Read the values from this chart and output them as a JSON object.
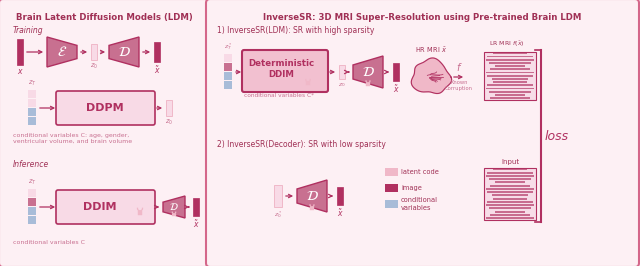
{
  "bg_color": "#ffffff",
  "left_panel_bg": "#fdf0f4",
  "right_panel_bg": "#fdf0f4",
  "panel_border_color": "#d4678a",
  "dark_pink": "#b03060",
  "med_pink": "#c87090",
  "light_pink": "#f0b8c8",
  "lighter_pink": "#f8dae6",
  "pink_box": "#f2c0d0",
  "blue_gray": "#a8bcd8",
  "text_color": "#c05070",
  "dark_text": "#a03055",
  "left_title": "Brain Latent Diffusion Models (LDM)",
  "right_title": "InverseSR: 3D MRI Super-Resolution using Pre-trained Brain LDM",
  "training_label": "Training",
  "inference_label": "Inference",
  "ddpm_label": "DDPM",
  "ddim_label": "DDIM",
  "det_ddim_label": "Deterministic\nDDIM",
  "cond_vars_training": "conditional variables C: age, gender,\nventricular volume, and brain volume",
  "cond_vars_inference": "conditional variables C",
  "section1_label": "1) InverseSR(LDM): SR with high sparsity",
  "section2_label": "2) InverseSR(Decoder): SR with low sparsity",
  "hr_mri_label": "HR MRI $\\bar{x}$",
  "lr_mri_label": "LR MRI $f(\\bar{x})$",
  "loss_label": "loss",
  "input_label": "Input",
  "latent_code_label": "latent code",
  "image_label": "image",
  "cond_vars_label": "conditional\nvariables",
  "known_corr_label": "Known\nCorruption",
  "cond_vars_star": "conditional variables C*"
}
